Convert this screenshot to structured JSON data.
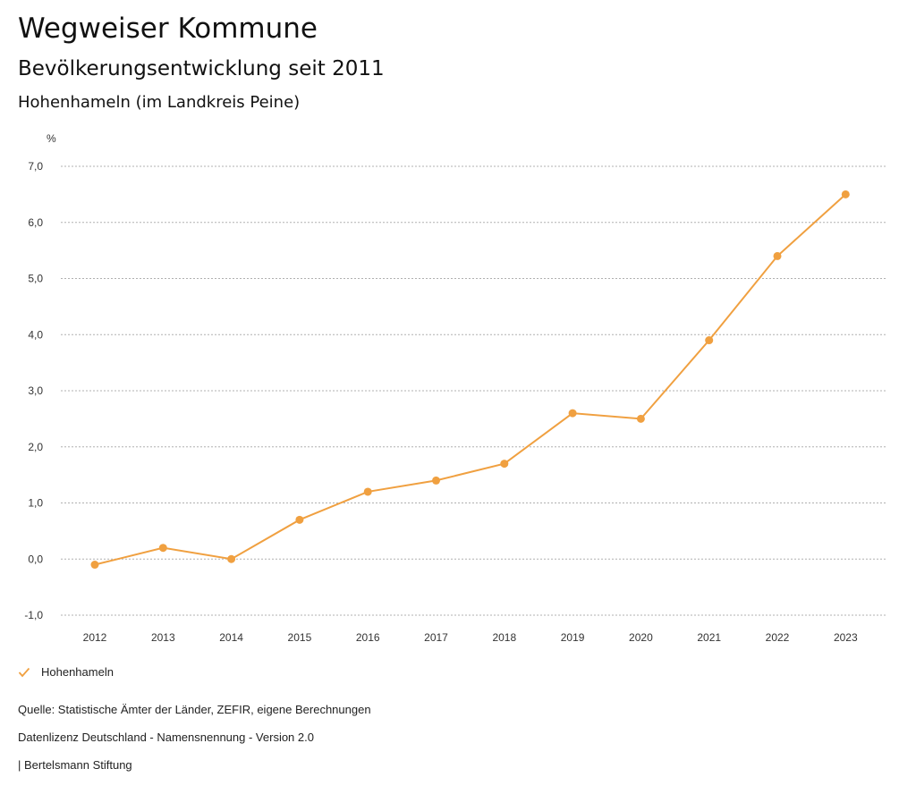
{
  "header": {
    "title": "Wegweiser Kommune",
    "subtitle": "Bevölkerungsentwicklung seit 2011",
    "region": "Hohenhameln (im Landkreis Peine)"
  },
  "chart_data": {
    "type": "line",
    "title": "Bevölkerungsentwicklung seit 2011",
    "ylabel": "%",
    "xlabel": "",
    "x": [
      "2012",
      "2013",
      "2014",
      "2015",
      "2016",
      "2017",
      "2018",
      "2019",
      "2020",
      "2021",
      "2022",
      "2023"
    ],
    "series": [
      {
        "name": "Hohenhameln",
        "color": "#f0a040",
        "values": [
          -0.1,
          0.2,
          0.0,
          0.7,
          1.2,
          1.4,
          1.7,
          2.6,
          2.5,
          3.9,
          5.4,
          6.5
        ]
      }
    ],
    "ylim": [
      -1.0,
      7.0
    ],
    "yticks": [
      "-1,0",
      "0,0",
      "1,0",
      "2,0",
      "3,0",
      "4,0",
      "5,0",
      "6,0",
      "7,0"
    ],
    "grid": true,
    "legend_position": "bottom-left"
  },
  "legend": {
    "label": "Hohenhameln"
  },
  "footer": {
    "source": "Quelle: Statistische Ämter der Länder, ZEFIR, eigene Berechnungen",
    "license": "Datenlizenz Deutschland - Namensnennung - Version 2.0",
    "brand": "| Bertelsmann Stiftung"
  },
  "colors": {
    "series": "#f0a040",
    "grid": "#b0b0b0"
  }
}
